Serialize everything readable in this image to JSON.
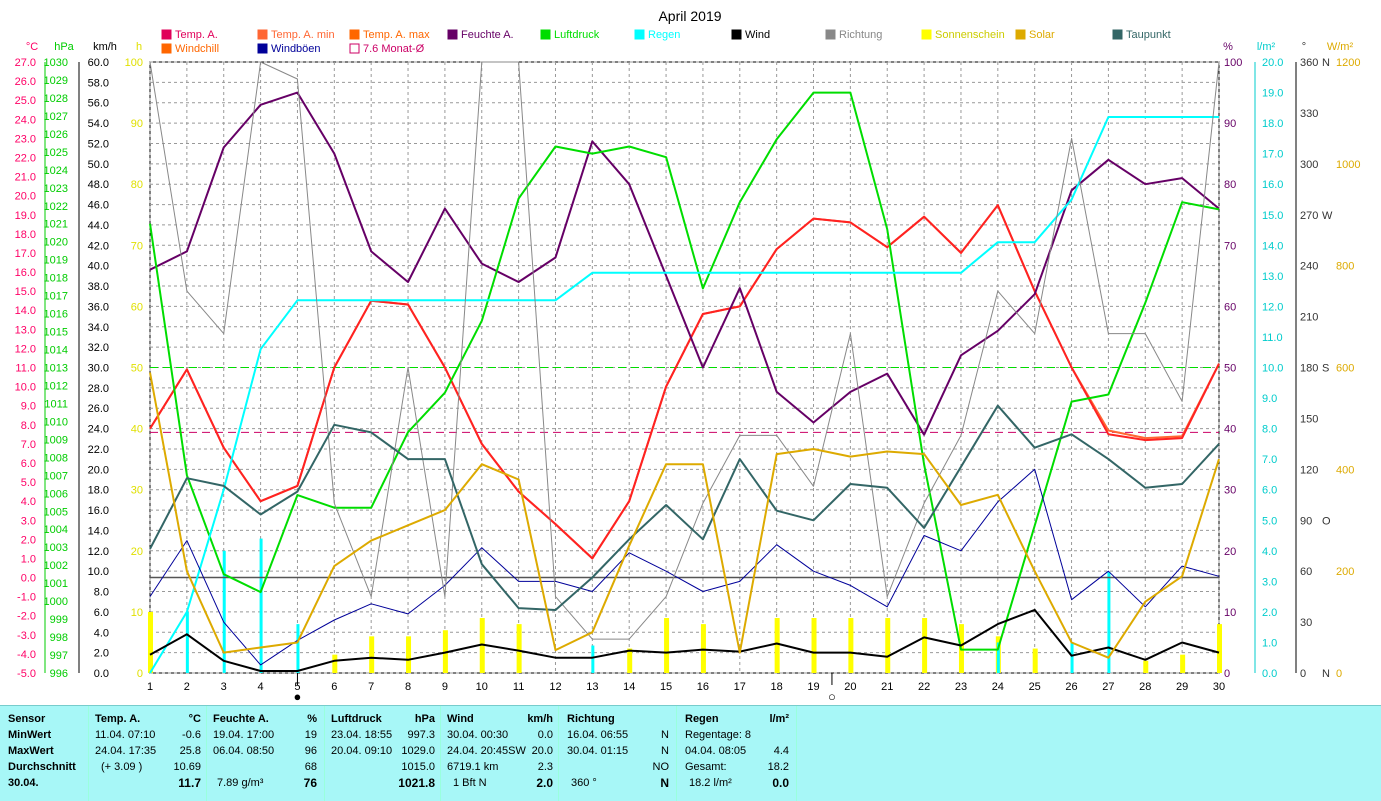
{
  "title": "April 2019",
  "legend": [
    {
      "label": "Temp. A.",
      "color": "#e0005a"
    },
    {
      "label": "Temp. A. min",
      "color": "#ff6633"
    },
    {
      "label": "Temp. A. max",
      "color": "#ff6600"
    },
    {
      "label": "Feuchte A.",
      "color": "#660066"
    },
    {
      "label": "Luftdruck",
      "color": "#00dd00"
    },
    {
      "label": "Regen",
      "color": "#00ffff"
    },
    {
      "label": "Wind",
      "color": "#000000"
    },
    {
      "label": "Richtung",
      "color": "#888888"
    },
    {
      "label": "Sonnenschein",
      "color": "#ffff00"
    },
    {
      "label": "Solar",
      "color": "#ddaa00"
    },
    {
      "label": "Taupunkt",
      "color": "#336666"
    },
    {
      "label": "Windchill",
      "color": "#ff6600"
    },
    {
      "label": "Windböen",
      "color": "#000099"
    },
    {
      "label": "7.6 Monat-Ø",
      "color": "#cc0066"
    }
  ],
  "chart_data": {
    "type": "line",
    "x": [
      1,
      2,
      3,
      4,
      5,
      6,
      7,
      8,
      9,
      10,
      11,
      12,
      13,
      14,
      15,
      16,
      17,
      18,
      19,
      20,
      21,
      22,
      23,
      24,
      25,
      26,
      27,
      28,
      29,
      30
    ],
    "xlim": [
      1,
      30
    ],
    "axes": [
      {
        "unit": "°C",
        "color": "#ff0066",
        "min": -5,
        "max": 27,
        "step": 1,
        "decimals": 1
      },
      {
        "unit": "hPa",
        "color": "#00cc00",
        "min": 996,
        "max": 1030,
        "step": 1,
        "decimals": 0
      },
      {
        "unit": "km/h",
        "color": "#000000",
        "min": 0,
        "max": 60,
        "step": 2,
        "decimals": 1
      },
      {
        "unit": "h",
        "color": "#e0e000",
        "min": 0,
        "max": 100,
        "step": 10,
        "decimals": 0
      },
      {
        "unit": "%",
        "color": "#660066",
        "min": 0,
        "max": 100,
        "step": 10,
        "decimals": 0
      },
      {
        "unit": "l/m²",
        "color": "#00cccc",
        "min": 0,
        "max": 20,
        "step": 1,
        "decimals": 1
      },
      {
        "unit": "°",
        "color": "#333333",
        "min": 0,
        "max": 360,
        "step": 30,
        "decimals": 0
      },
      {
        "unit": "W/m²",
        "color": "#ddaa00",
        "min": 0,
        "max": 1200,
        "step": 200,
        "decimals": 0
      }
    ],
    "compass": [
      {
        "deg": 0,
        "label": "N"
      },
      {
        "deg": 90,
        "label": "O"
      },
      {
        "deg": 180,
        "label": "S"
      },
      {
        "deg": 270,
        "label": "W"
      },
      {
        "deg": 360,
        "label": "N"
      }
    ],
    "month_avg_temp": 7.6,
    "series": [
      {
        "name": "Temp. A. max",
        "axis": 0,
        "color": "#ff6633",
        "width": 2,
        "values": [
          7.8,
          10.9,
          6.8,
          4.0,
          4.8,
          11.0,
          14.5,
          14.3,
          11.0,
          7.0,
          4.5,
          2.8,
          1.0,
          4.0,
          10.0,
          13.8,
          14.2,
          17.2,
          18.8,
          18.6,
          17.3,
          18.9,
          17.0,
          19.5,
          15.0,
          11.0,
          7.7,
          7.3,
          7.4,
          11.2
        ]
      },
      {
        "name": "Temp. A.",
        "axis": 0,
        "color": "#ff2222",
        "width": 2,
        "values": [
          7.8,
          10.9,
          6.8,
          4.0,
          4.8,
          11.0,
          14.5,
          14.3,
          11.0,
          7.0,
          4.5,
          2.8,
          1.0,
          4.0,
          10.0,
          13.8,
          14.2,
          17.2,
          18.8,
          18.6,
          17.3,
          18.9,
          17.0,
          19.5,
          15.0,
          11.0,
          7.5,
          7.2,
          7.3,
          11.2
        ]
      },
      {
        "name": "Feuchte A.",
        "axis": 4,
        "color": "#660066",
        "width": 2,
        "values": [
          66,
          69,
          86,
          93,
          95,
          85,
          69,
          64,
          76,
          67,
          64,
          68,
          87,
          80,
          65,
          50,
          63,
          46,
          41,
          46,
          49,
          39,
          52,
          56,
          62,
          79,
          84,
          80,
          81,
          76
        ]
      },
      {
        "name": "Luftdruck",
        "axis": 1,
        "color": "#00dd00",
        "width": 2,
        "values": [
          1021,
          1007,
          1001.5,
          1000.5,
          1005.9,
          1005.2,
          1005.2,
          1009.4,
          1011.6,
          1015.6,
          1022.4,
          1025.3,
          1024.9,
          1025.3,
          1024.7,
          1017.4,
          1022.2,
          1025.7,
          1028.3,
          1028.3,
          1020.7,
          1007.6,
          997.3,
          997.3,
          1004.2,
          1011.1,
          1011.5,
          1016.6,
          1022.2,
          1021.8
        ]
      },
      {
        "name": "Regen",
        "axis": 5,
        "color": "#00ffff",
        "width": 2,
        "values": [
          0,
          2,
          6,
          10.6,
          12.2,
          12.2,
          12.2,
          12.2,
          12.2,
          12.2,
          12.2,
          12.2,
          13.1,
          13.1,
          13.1,
          13.1,
          13.1,
          13.1,
          13.1,
          13.1,
          13.1,
          13.1,
          13.1,
          14.1,
          14.1,
          15.5,
          18.2,
          18.2,
          18.2,
          18.2
        ]
      },
      {
        "name": "Windböen",
        "axis": 2,
        "color": "#000099",
        "width": 1,
        "values": [
          7.5,
          13.0,
          5.0,
          0.8,
          3.2,
          5.2,
          6.8,
          5.8,
          8.6,
          12.3,
          9.0,
          9.0,
          8.0,
          11.8,
          10.0,
          8.0,
          9.0,
          12.6,
          10.0,
          8.6,
          6.5,
          13.5,
          12.0,
          16.8,
          20.0,
          7.2,
          10.0,
          6.5,
          10.5,
          9.5
        ]
      },
      {
        "name": "Wind",
        "axis": 2,
        "color": "#000000",
        "width": 2,
        "values": [
          1.8,
          3.8,
          1.2,
          0.2,
          0.2,
          1.2,
          1.5,
          1.3,
          2.0,
          2.8,
          2.2,
          1.5,
          1.5,
          2.2,
          2.0,
          2.3,
          2.1,
          2.9,
          2.0,
          2.0,
          1.6,
          3.5,
          2.7,
          4.8,
          6.2,
          1.7,
          2.5,
          1.3,
          3.0,
          2.0
        ]
      },
      {
        "name": "Richtung",
        "axis": 6,
        "color": "#888888",
        "width": 1,
        "values": [
          360,
          225,
          200,
          360,
          350,
          100,
          45,
          180,
          45,
          360,
          360,
          45,
          20,
          20,
          45,
          100,
          140,
          140,
          110,
          200,
          45,
          100,
          140,
          225,
          200,
          315,
          200,
          200,
          160,
          360
        ]
      },
      {
        "name": "Taupunkt",
        "axis": 0,
        "color": "#336666",
        "width": 2,
        "values": [
          1.5,
          5.2,
          4.8,
          3.3,
          4.5,
          8.0,
          7.6,
          6.2,
          6.2,
          0.7,
          -1.6,
          -1.7,
          0.0,
          2.0,
          3.8,
          2.0,
          6.2,
          3.5,
          3.0,
          4.9,
          4.7,
          2.6,
          5.8,
          9.0,
          6.8,
          7.5,
          6.2,
          4.7,
          4.9,
          7.0
        ]
      },
      {
        "name": "Solar",
        "axis": 7,
        "color": "#ddaa00",
        "width": 2,
        "values": [
          590,
          200,
          40,
          50,
          60,
          210,
          260,
          290,
          320,
          410,
          380,
          45,
          80,
          250,
          410,
          410,
          40,
          430,
          440,
          425,
          435,
          430,
          330,
          350,
          200,
          60,
          30,
          140,
          190,
          420
        ]
      }
    ],
    "bars": [
      {
        "name": "Sonnenschein",
        "axis": 3,
        "color": "#ffff00",
        "values": [
          10,
          0,
          0,
          0,
          0,
          3,
          6,
          6,
          7,
          9,
          8,
          0,
          0,
          4,
          9,
          8,
          0,
          9,
          9,
          9,
          9,
          9,
          8,
          6,
          4,
          0,
          0,
          2,
          3,
          8
        ]
      },
      {
        "name": "Regen",
        "axis": 5,
        "color": "#00ffff",
        "values": [
          0,
          2.0,
          4.0,
          4.4,
          1.6,
          0,
          0,
          0,
          0,
          0,
          0,
          0,
          0.9,
          0,
          0,
          0,
          0,
          0,
          0,
          0,
          0,
          0,
          0,
          1.0,
          0,
          1.0,
          3.3,
          0,
          0,
          0
        ]
      }
    ],
    "moon_markers": [
      {
        "day": 5,
        "symbol": "●"
      },
      {
        "day": 19.5,
        "symbol": "○"
      }
    ]
  },
  "stats": {
    "row_labels": [
      "Sensor",
      "MinWert",
      "MaxWert",
      "Durchschnitt",
      "30.04."
    ],
    "temp": {
      "header": "Temp. A.",
      "unit": "°C",
      "min_time": "11.04.  07:10",
      "min": "-0.6",
      "max_time": "24.04.  17:35",
      "max": "25.8",
      "avg_note": "(+ 3.09 )",
      "avg": "10.69",
      "today": "11.7"
    },
    "hum": {
      "header": "Feuchte A.",
      "unit": "%",
      "min_time": "19.04.  17:00",
      "min": "19",
      "max_time": "06.04.  08:50",
      "max": "96",
      "avg": "68",
      "abs": "7.89 g/m³",
      "today": "76"
    },
    "press": {
      "header": "Luftdruck",
      "unit": "hPa",
      "min_time": "23.04.  18:55",
      "min": "997.3",
      "max_time": "20.04.  09:10",
      "max": "1029.0",
      "avg": "1015.0",
      "today": "1021.8"
    },
    "wind": {
      "header": "Wind",
      "unit": "km/h",
      "min_time": "30.04.  00:30",
      "min": "0.0",
      "max_time": "24.04.  20:45SW",
      "max": "20.0",
      "dist": "6719.1 km",
      "avg": "2.3",
      "bft": "1 Bft N",
      "today": "2.0"
    },
    "dir": {
      "header": "Richtung",
      "min_time": "16.04.  06:55",
      "min": "N",
      "max_time": "30.04.  01:15",
      "max": "N",
      "avg": "NO",
      "deg": "360 °",
      "today": "N"
    },
    "rain": {
      "header": "Regen",
      "unit": "l/m²",
      "days": "Regentage: 8",
      "max_time": "04.04.  08:05",
      "max": "4.4",
      "total_label": "Gesamt:",
      "total": "18.2",
      "today_label": "18.2 l/m²",
      "today": "0.0"
    }
  }
}
